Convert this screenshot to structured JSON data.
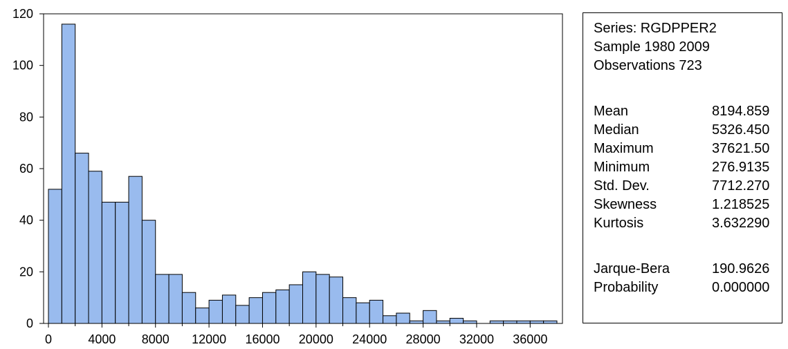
{
  "chart_data": {
    "type": "bar",
    "bin_width": 1000,
    "bins_start": [
      0,
      1000,
      2000,
      3000,
      4000,
      5000,
      6000,
      7000,
      8000,
      9000,
      10000,
      11000,
      12000,
      13000,
      14000,
      15000,
      16000,
      17000,
      18000,
      19000,
      20000,
      21000,
      22000,
      23000,
      24000,
      25000,
      26000,
      27000,
      28000,
      29000,
      30000,
      31000,
      32000,
      33000,
      34000,
      35000,
      36000,
      37000
    ],
    "values": [
      52,
      116,
      66,
      59,
      47,
      47,
      57,
      40,
      19,
      19,
      12,
      6,
      9,
      11,
      7,
      10,
      12,
      13,
      15,
      20,
      19,
      18,
      10,
      8,
      9,
      3,
      4,
      1,
      5,
      1,
      2,
      1,
      0,
      1,
      1,
      1,
      1,
      1
    ],
    "xlim": [
      0,
      38000
    ],
    "ylim": [
      0,
      120
    ],
    "x_ticks": [
      0,
      4000,
      8000,
      12000,
      16000,
      20000,
      24000,
      28000,
      32000,
      36000
    ],
    "y_ticks": [
      0,
      20,
      40,
      60,
      80,
      100,
      120
    ],
    "bar_color": "#99bbee",
    "grid": false
  },
  "stats": {
    "series": "Series: RGDPPER2",
    "sample": "Sample 1980 2009",
    "observations": "Observations 723",
    "rows": [
      {
        "label": "Mean",
        "value": "8194.859"
      },
      {
        "label": "Median",
        "value": "5326.450"
      },
      {
        "label": "Maximum",
        "value": "37621.50"
      },
      {
        "label": "Minimum",
        "value": "276.9135"
      },
      {
        "label": "Std. Dev.",
        "value": "7712.270"
      },
      {
        "label": "Skewness",
        "value": "1.218525"
      },
      {
        "label": "Kurtosis",
        "value": "3.632290"
      }
    ],
    "test_rows": [
      {
        "label": "Jarque-Bera",
        "value": "190.9626"
      },
      {
        "label": "Probability",
        "value": "0.000000"
      }
    ]
  }
}
